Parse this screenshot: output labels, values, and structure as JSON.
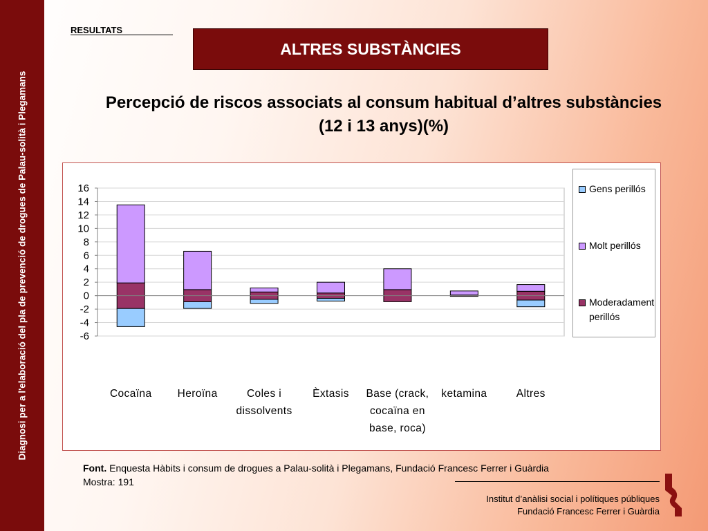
{
  "sidebar": {
    "text": "Diagnosi per a l'elaboració del pla de prevenció de drogues de Palau-solità i Plegamans"
  },
  "header": {
    "section": "RESULTATS",
    "banner": "ALTRES SUBSTÀNCIES"
  },
  "chart_data": {
    "type": "bar",
    "stacked": true,
    "title": "Percepció de riscos associats al consum habitual d’altres substàncies (12 i 13 anys)(%)",
    "categories": [
      [
        "Cocaïna"
      ],
      [
        "Heroïna"
      ],
      [
        "Coles i",
        "dissolvents"
      ],
      [
        "Èxtasis"
      ],
      [
        "Base (crack,",
        "cocaïna en",
        "base, roca)"
      ],
      [
        "ketamina"
      ],
      [
        "Altres"
      ]
    ],
    "series": [
      {
        "name": "Gens perillós",
        "color": "#99ccff",
        "values": [
          -2.7,
          -1.0,
          -0.6,
          -0.4,
          0,
          0,
          -1.0
        ]
      },
      {
        "name": "Molt perillós",
        "color": "#cc99ff",
        "values": [
          11.6,
          5.7,
          0.6,
          1.6,
          3.1,
          0.6,
          1.0
        ]
      },
      {
        "name": "Moderadament perillós",
        "color": "#993366",
        "values": [
          3.8,
          1.8,
          1.1,
          0.8,
          1.8,
          0.2,
          1.3
        ]
      }
    ],
    "y_ticks": [
      16,
      14,
      12,
      10,
      8,
      6,
      4,
      2,
      0,
      -2,
      -4,
      -6
    ],
    "ylim": [
      -6,
      16
    ],
    "grid": true,
    "legend_position": "right"
  },
  "legend_labels": [
    {
      "lines": [
        "Gens perillós"
      ],
      "color": "#99ccff"
    },
    {
      "lines": [
        "Molt perillós"
      ],
      "color": "#cc99ff"
    },
    {
      "lines": [
        "Moderadament",
        "perillós"
      ],
      "color": "#993366"
    }
  ],
  "source": {
    "label": "Font.",
    "text": " Enquesta Hàbits i consum de drogues a Palau-solità i Plegamans, Fundació Francesc Ferrer i Guàrdia",
    "sample": "Mostra: 191"
  },
  "footer": {
    "line1": "Institut d’anàlisi social i polítiques públiques",
    "line2": "Fundació Francesc Ferrer i Guàrdia"
  },
  "colors": {
    "brand": "#7a0c0c"
  }
}
